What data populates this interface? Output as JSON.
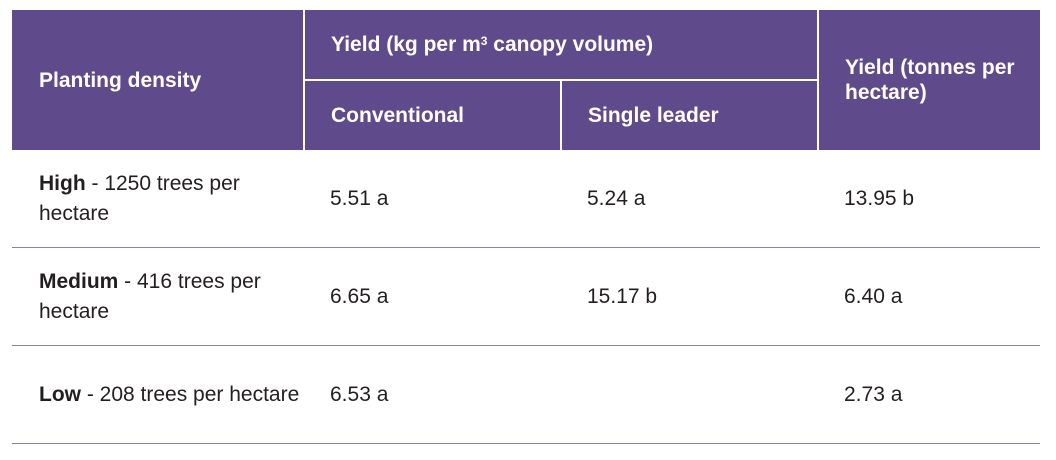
{
  "header": {
    "planting_density": "Planting density",
    "yield_canopy_pre": "Yield (kg per m",
    "yield_canopy_sup": "3",
    "yield_canopy_post": " canopy volume)",
    "conventional": "Conventional",
    "single_leader": "Single leader",
    "yield_tonnes": "Yield (tonnes per hectare)"
  },
  "rows": [
    {
      "density_bold": "High",
      "density_rest": " - 1250 trees per hectare",
      "conventional": "5.51 a",
      "single_leader": "5.24 a",
      "tonnes": "13.95 b"
    },
    {
      "density_bold": "Medium",
      "density_rest": " - 416 trees per hectare",
      "conventional": "6.65 a",
      "single_leader": "15.17 b",
      "tonnes": "6.40 a"
    },
    {
      "density_bold": "Low",
      "density_rest": " - 208 trees per hectare",
      "conventional": "6.53 a",
      "single_leader": "",
      "tonnes": "2.73 a"
    }
  ]
}
